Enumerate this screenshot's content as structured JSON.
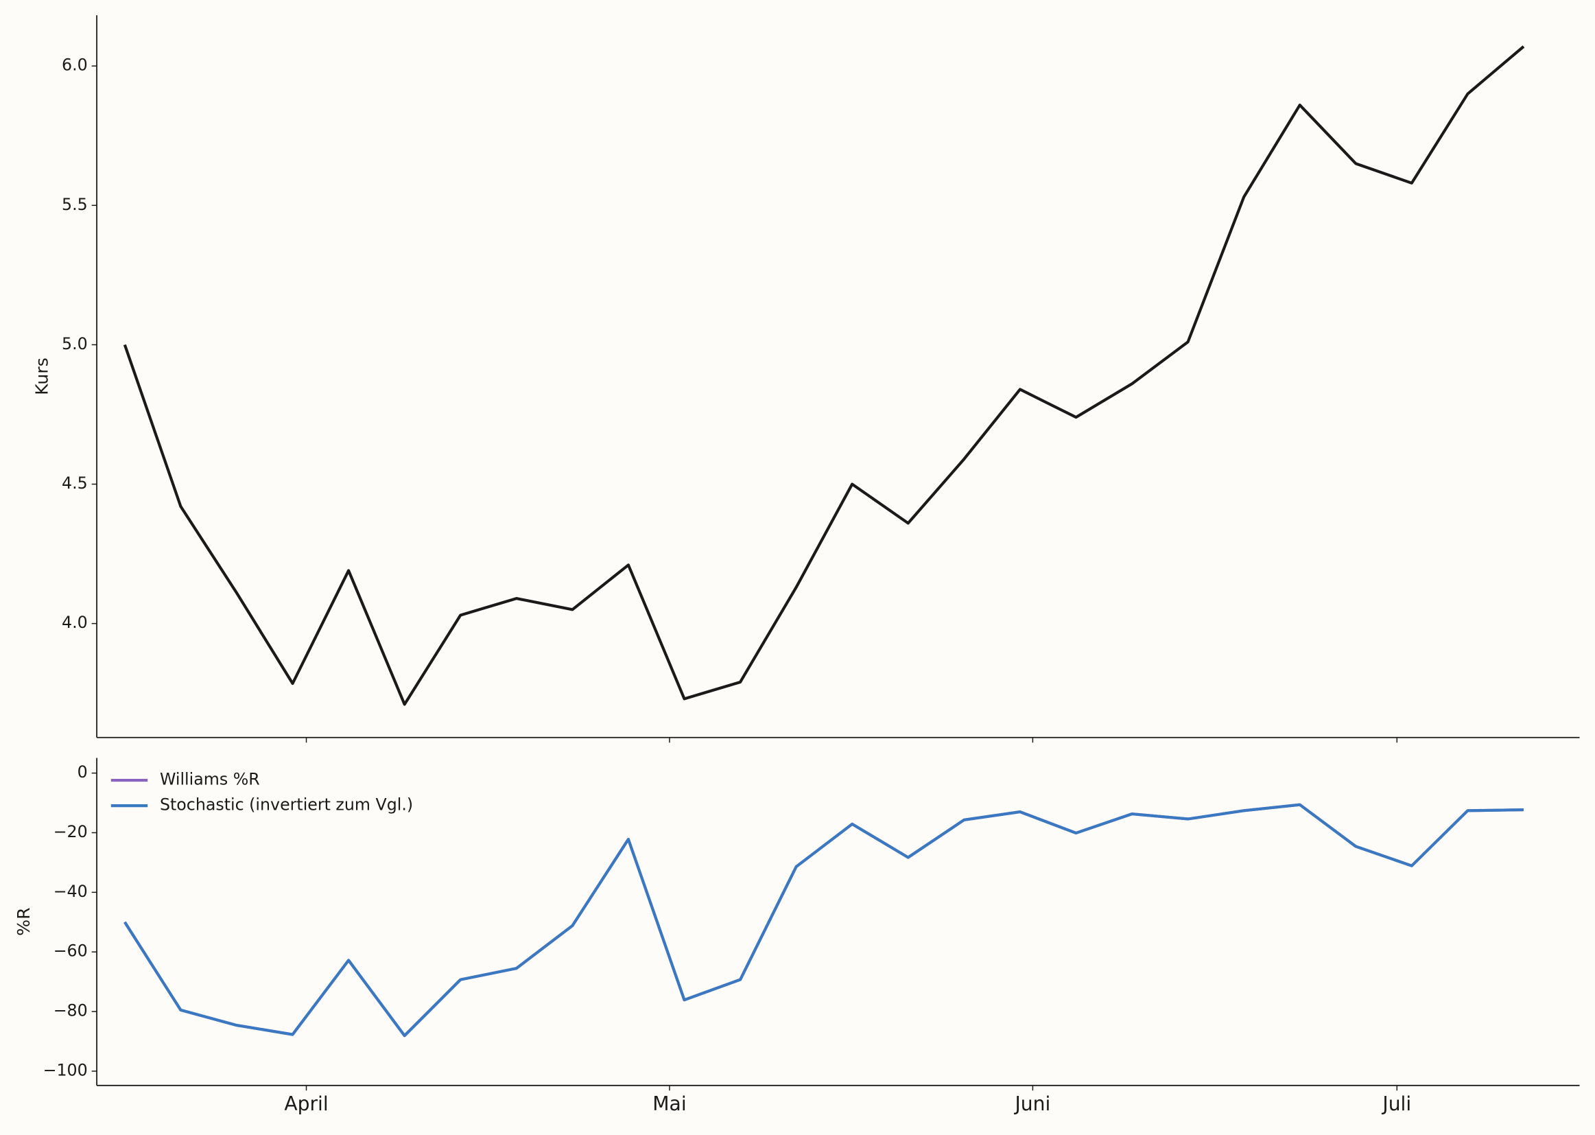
{
  "chart_data": [
    {
      "type": "line",
      "ylabel": "Kurs",
      "x": [
        0,
        1,
        2,
        3,
        4,
        5,
        6,
        7,
        8,
        9,
        10,
        11,
        12,
        13,
        14,
        15,
        16,
        17,
        18,
        19,
        20,
        21,
        22,
        23,
        24,
        25
      ],
      "values": [
        5.0,
        4.42,
        4.11,
        3.785,
        4.19,
        3.71,
        4.03,
        4.09,
        4.05,
        4.21,
        3.73,
        3.79,
        4.13,
        4.5,
        4.36,
        4.59,
        4.84,
        4.74,
        4.86,
        5.01,
        5.53,
        5.86,
        5.65,
        5.58,
        5.9,
        6.07
      ],
      "color": "#1a1a1a",
      "xlim": [
        -0.5,
        26.0
      ],
      "ylim": [
        3.591,
        6.182
      ],
      "yticks": [
        {
          "value": 4,
          "label": "4.0"
        },
        {
          "value": 4.5,
          "label": "4.5"
        },
        {
          "value": 5,
          "label": "5.0"
        },
        {
          "value": 5.5,
          "label": "5.5"
        },
        {
          "value": 6,
          "label": "6.0"
        }
      ]
    },
    {
      "type": "line",
      "ylabel": "%R",
      "x": [
        0,
        1,
        2,
        3,
        4,
        5,
        6,
        7,
        8,
        9,
        10,
        11,
        12,
        13,
        14,
        15,
        16,
        17,
        18,
        19,
        20,
        21,
        22,
        23,
        24,
        25
      ],
      "series": [
        {
          "name": "Williams %R",
          "color": "#8a63c0",
          "values": [
            -50,
            -79.5,
            -84.6,
            -87.7,
            -62.8,
            -88.1,
            -69.3,
            -65.5,
            -51.2,
            -22.2,
            -76.1,
            -69.3,
            -31.4,
            -17.1,
            -28.3,
            -15.7,
            -13.0,
            -20.1,
            -13.7,
            -15.4,
            -12.6,
            -10.6,
            -24.6,
            -31.1,
            -12.6,
            -12.3
          ]
        },
        {
          "name": "Stochastic (invertiert zum Vgl.)",
          "color": "#3b78c2",
          "values": [
            -50,
            -79.5,
            -84.6,
            -87.7,
            -62.8,
            -88.1,
            -69.3,
            -65.5,
            -51.2,
            -22.2,
            -76.1,
            -69.3,
            -31.4,
            -17.1,
            -28.3,
            -15.7,
            -13.0,
            -20.1,
            -13.7,
            -15.4,
            -12.6,
            -10.6,
            -24.6,
            -31.1,
            -12.6,
            -12.3
          ]
        }
      ],
      "legend": "upper left",
      "xlim": [
        -0.5,
        26.0
      ],
      "ylim": [
        -104.8,
        5.1
      ],
      "xticks": [
        {
          "value": 3.245,
          "label": "April"
        },
        {
          "value": 9.736,
          "label": "Mai"
        },
        {
          "value": 16.227,
          "label": "Juni"
        },
        {
          "value": 22.736,
          "label": "Juli"
        }
      ],
      "yticks": [
        {
          "value": -100,
          "label": "−100"
        },
        {
          "value": -80,
          "label": "−80"
        },
        {
          "value": -60,
          "label": "−60"
        },
        {
          "value": -40,
          "label": "−40"
        },
        {
          "value": -20,
          "label": "−20"
        },
        0
      ]
    }
  ]
}
